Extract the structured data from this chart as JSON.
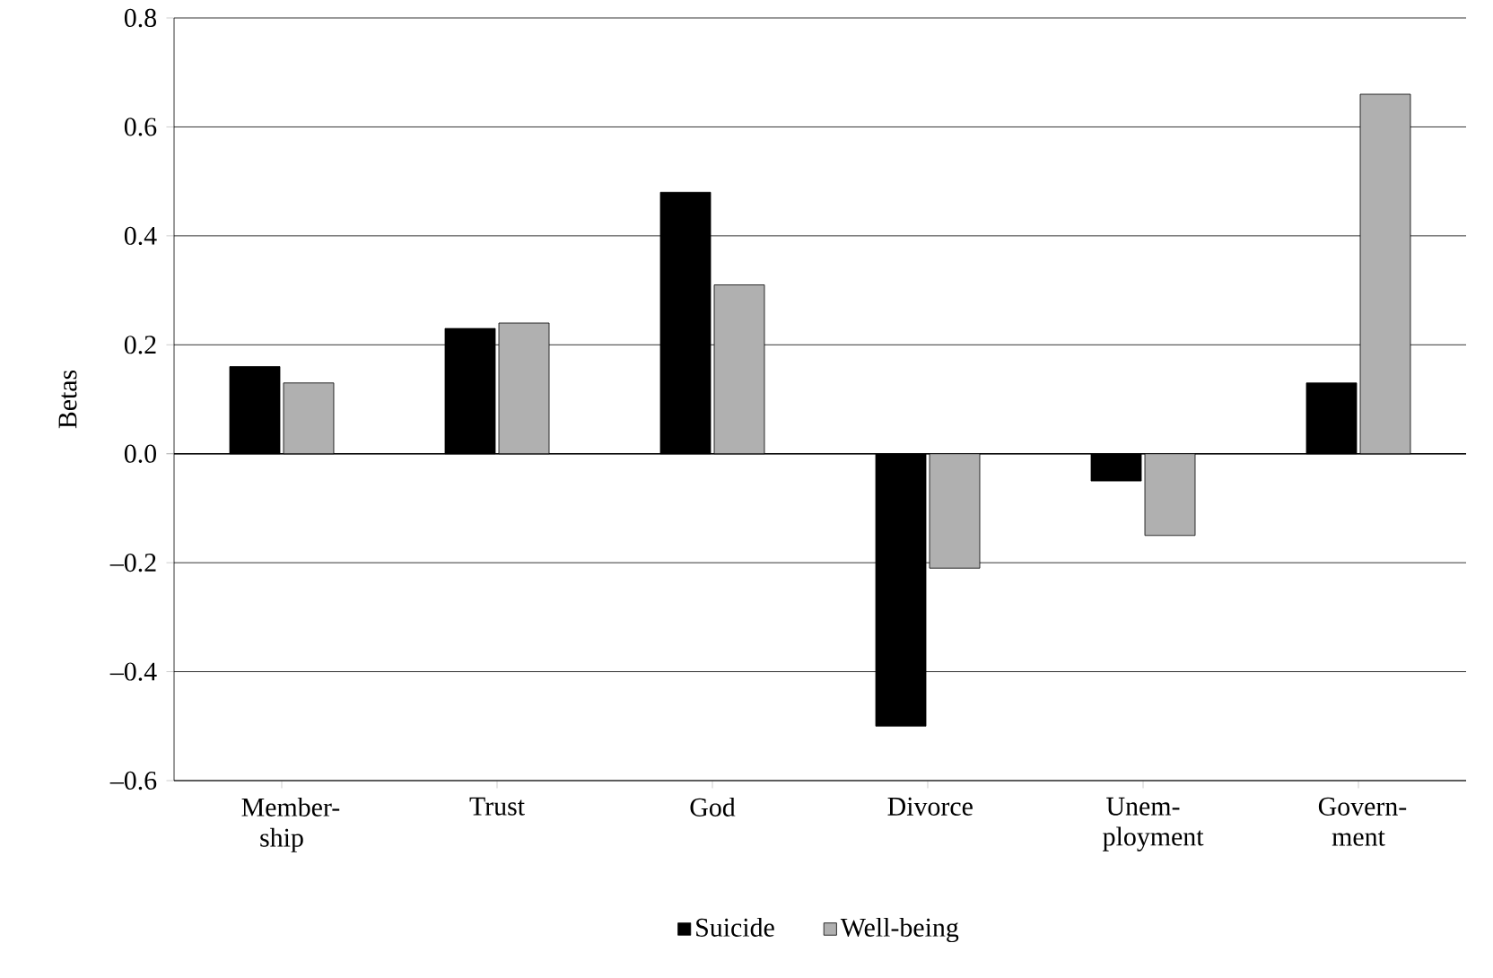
{
  "chart_data": {
    "type": "bar",
    "ylabel": "Betas",
    "categories": [
      "Member-ship",
      "Trust",
      "God",
      "Divorce",
      "Unem-ployment",
      "Govern-ment"
    ],
    "series": [
      {
        "name": "Suicide",
        "color": "#000000",
        "values": [
          0.16,
          0.23,
          0.48,
          -0.5,
          -0.05,
          0.13
        ]
      },
      {
        "name": "Well-being",
        "color": "#b0b0b0",
        "values": [
          0.13,
          0.24,
          0.31,
          -0.21,
          -0.15,
          0.66
        ]
      }
    ],
    "ylim": [
      -0.6,
      0.8
    ],
    "yticks": [
      {
        "value": -0.6,
        "label": "–0.6"
      },
      {
        "value": -0.4,
        "label": "–0.4"
      },
      {
        "value": -0.2,
        "label": "–0.2"
      },
      {
        "value": 0,
        "label": "0.0"
      },
      {
        "value": 0.2,
        "label": "0.2"
      },
      {
        "value": 0.4,
        "label": "0.4"
      },
      {
        "value": 0.6,
        "label": "0.6"
      },
      {
        "value": 0.8,
        "label": "0.8"
      }
    ],
    "grid": "y",
    "legend": "bottom"
  }
}
